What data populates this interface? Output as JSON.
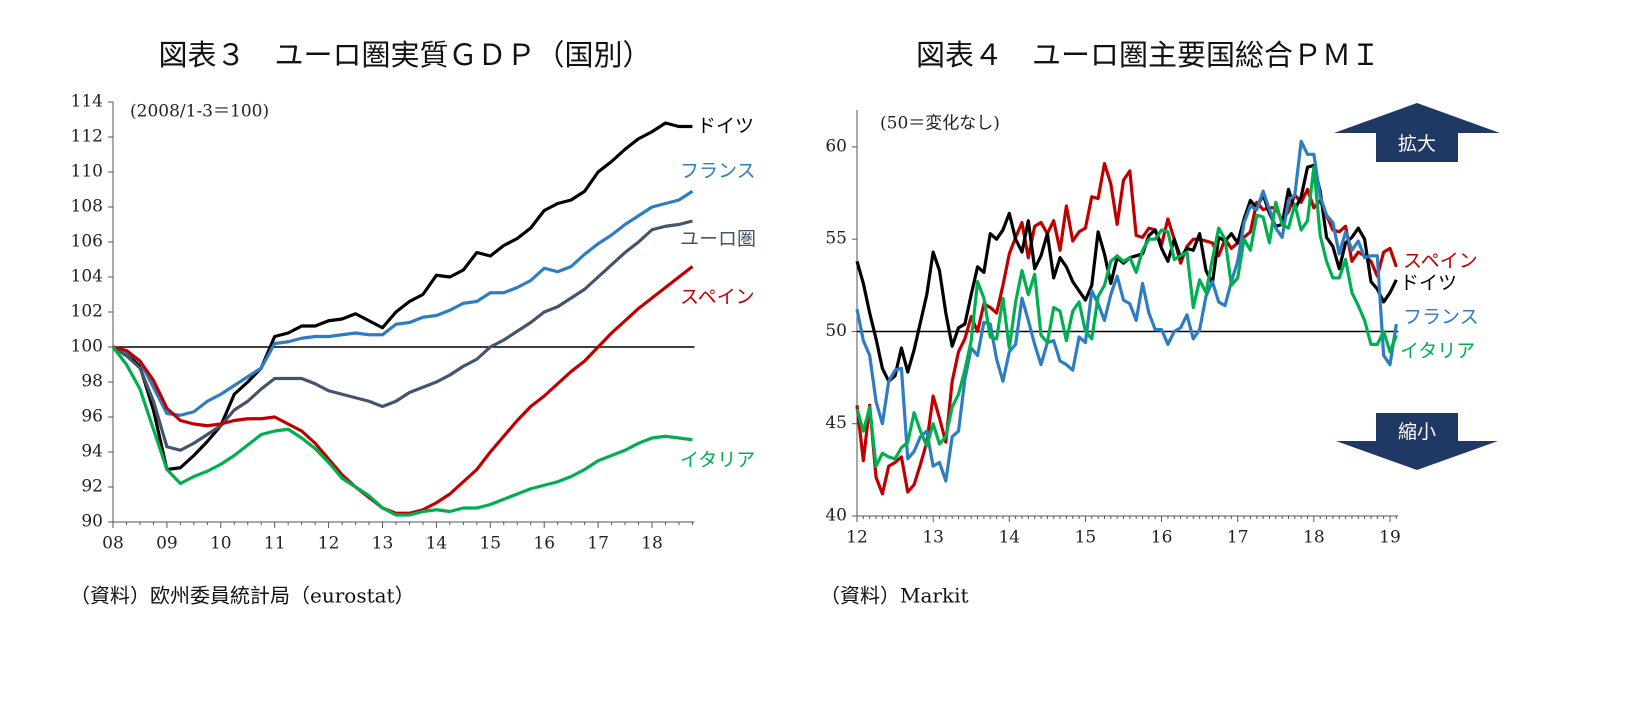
{
  "chart_data": [
    {
      "type": "line",
      "title": "図表３　ユーロ圏実質ＧＤＰ（国別）",
      "note": "(2008/1-3＝100)",
      "source": "（資料）欧州委員統計局（eurostat）",
      "categories": [
        "08",
        null,
        null,
        null,
        "09",
        null,
        null,
        null,
        "10",
        null,
        null,
        null,
        "11",
        null,
        null,
        null,
        "12",
        null,
        null,
        null,
        "13",
        null,
        null,
        null,
        "14",
        null,
        null,
        null,
        "15",
        null,
        null,
        null,
        "16",
        null,
        null,
        null,
        "17",
        null,
        null,
        null,
        "18",
        null,
        null,
        null
      ],
      "ylim": [
        90,
        114
      ],
      "yticks": [
        90,
        92,
        94,
        96,
        98,
        100,
        102,
        104,
        106,
        108,
        110,
        112,
        114
      ],
      "hline": 100,
      "series": [
        {
          "name": "ドイツ",
          "color": "#000000",
          "values": [
            100,
            99.6,
            98.9,
            96.4,
            93.0,
            93.1,
            93.8,
            94.6,
            95.5,
            97.3,
            98.0,
            98.8,
            100.6,
            100.8,
            101.2,
            101.2,
            101.5,
            101.6,
            101.9,
            101.5,
            101.1,
            102.0,
            102.6,
            103.0,
            104.1,
            104.0,
            104.4,
            105.4,
            105.2,
            105.8,
            106.2,
            106.8,
            107.8,
            108.2,
            108.4,
            108.9,
            110.0,
            110.6,
            111.3,
            111.9,
            112.3,
            112.8,
            112.6,
            112.6
          ]
        },
        {
          "name": "フランス",
          "color": "#2e7dc2",
          "values": [
            100,
            99.7,
            99.2,
            97.7,
            96.2,
            96.1,
            96.3,
            96.9,
            97.3,
            97.8,
            98.3,
            98.8,
            100.2,
            100.3,
            100.5,
            100.6,
            100.6,
            100.7,
            100.8,
            100.7,
            100.7,
            101.3,
            101.4,
            101.7,
            101.8,
            102.1,
            102.5,
            102.6,
            103.1,
            103.1,
            103.4,
            103.8,
            104.5,
            104.3,
            104.6,
            105.3,
            105.9,
            106.4,
            107.0,
            107.5,
            108.0,
            108.2,
            108.4,
            108.9
          ]
        },
        {
          "name": "ユーロ圏",
          "color": "#44546a",
          "values": [
            100,
            99.5,
            98.8,
            96.9,
            94.3,
            94.1,
            94.5,
            95.0,
            95.5,
            96.4,
            96.9,
            97.6,
            98.2,
            98.2,
            98.2,
            97.9,
            97.5,
            97.3,
            97.1,
            96.9,
            96.6,
            96.9,
            97.4,
            97.7,
            98.0,
            98.4,
            98.9,
            99.3,
            100.0,
            100.4,
            100.9,
            101.4,
            102.0,
            102.3,
            102.8,
            103.3,
            104.0,
            104.7,
            105.4,
            106.0,
            106.7,
            106.9,
            107.0,
            107.2
          ]
        },
        {
          "name": "スペイン",
          "color": "#c00000",
          "values": [
            100,
            99.8,
            99.2,
            98.1,
            96.5,
            95.8,
            95.6,
            95.5,
            95.6,
            95.8,
            95.9,
            95.9,
            96.0,
            95.6,
            95.2,
            94.5,
            93.6,
            92.7,
            92.0,
            91.4,
            90.8,
            90.5,
            90.5,
            90.7,
            91.1,
            91.6,
            92.3,
            93.0,
            94.0,
            94.9,
            95.8,
            96.6,
            97.2,
            97.9,
            98.6,
            99.2,
            100.0,
            100.8,
            101.5,
            102.2,
            102.8,
            103.4,
            104.0,
            104.6
          ]
        },
        {
          "name": "イタリア",
          "color": "#00b050",
          "values": [
            100,
            99.0,
            97.6,
            95.3,
            93.0,
            92.2,
            92.6,
            92.9,
            93.3,
            93.8,
            94.4,
            95.0,
            95.2,
            95.3,
            94.8,
            94.2,
            93.4,
            92.5,
            92.0,
            91.5,
            90.8,
            90.4,
            90.4,
            90.6,
            90.7,
            90.6,
            90.8,
            90.8,
            91.0,
            91.3,
            91.6,
            91.9,
            92.1,
            92.3,
            92.6,
            93.0,
            93.5,
            93.8,
            94.1,
            94.5,
            94.8,
            94.9,
            94.8,
            94.7
          ]
        }
      ]
    },
    {
      "type": "line",
      "title": "図表４　ユーロ圏主要国総合ＰＭＩ",
      "note": "(50＝変化なし)",
      "source": "（資料）Markit",
      "annotations": [
        "拡大",
        "縮小"
      ],
      "categories": [
        "12",
        null,
        null,
        null,
        null,
        null,
        null,
        null,
        null,
        null,
        null,
        null,
        "13",
        null,
        null,
        null,
        null,
        null,
        null,
        null,
        null,
        null,
        null,
        null,
        "14",
        null,
        null,
        null,
        null,
        null,
        null,
        null,
        null,
        null,
        null,
        null,
        "15",
        null,
        null,
        null,
        null,
        null,
        null,
        null,
        null,
        null,
        null,
        null,
        "16",
        null,
        null,
        null,
        null,
        null,
        null,
        null,
        null,
        null,
        null,
        null,
        "17",
        null,
        null,
        null,
        null,
        null,
        null,
        null,
        null,
        null,
        null,
        null,
        "18",
        null,
        null,
        null,
        null,
        null,
        null,
        null,
        null,
        null,
        null,
        null,
        "19",
        null
      ],
      "ylim": [
        40,
        62
      ],
      "yticks": [
        40,
        45,
        50,
        55,
        60
      ],
      "hline": 50,
      "series": [
        {
          "name": "スペイン",
          "color": "#c00000",
          "values": [
            46.0,
            43.0,
            46.0,
            42.1,
            41.2,
            42.7,
            42.9,
            43.2,
            41.3,
            41.7,
            42.8,
            44.0,
            46.5,
            45.3,
            44.0,
            47.3,
            48.9,
            49.6,
            50.8,
            50.0,
            51.5,
            51.3,
            51.0,
            52.5,
            54.2,
            55.1,
            55.9,
            54.0,
            55.7,
            55.9,
            55.3,
            56.0,
            54.4,
            56.8,
            54.9,
            55.4,
            55.6,
            57.3,
            57.2,
            59.1,
            58.0,
            55.8,
            58.2,
            58.7,
            55.2,
            55.1,
            55.6,
            55.5,
            54.7,
            56.1,
            55.0,
            53.7,
            54.6,
            55.0,
            55.0,
            54.9,
            54.8,
            54.1,
            55.0,
            54.5,
            54.8,
            55.1,
            55.4,
            57.0,
            56.6,
            56.7,
            56.7,
            56.0,
            56.5,
            57.4,
            57.0,
            57.7,
            56.7,
            57.1,
            56.3,
            55.5,
            55.4,
            55.7,
            53.8,
            54.3,
            54.1,
            53.8,
            53.0,
            54.3,
            54.5,
            53.5
          ]
        },
        {
          "name": "ドイツ",
          "color": "#000000",
          "values": [
            53.8,
            52.6,
            51.0,
            49.6,
            48.0,
            47.3,
            47.6,
            49.1,
            47.8,
            49.0,
            50.5,
            52.0,
            54.3,
            53.3,
            51.0,
            49.2,
            50.2,
            50.4,
            52.0,
            53.5,
            53.2,
            55.3,
            55.0,
            55.5,
            56.4,
            55.0,
            54.3,
            56.0,
            53.4,
            54.1,
            55.3,
            52.9,
            54.0,
            53.5,
            52.7,
            52.2,
            51.7,
            52.5,
            55.4,
            54.2,
            52.6,
            54.0,
            53.7,
            54.0,
            54.1,
            54.2,
            55.2,
            55.5,
            54.5,
            53.8,
            55.0,
            54.0,
            54.5,
            54.4,
            55.3,
            53.3,
            52.6,
            55.1,
            54.9,
            55.3,
            54.8,
            56.1,
            57.1,
            56.7,
            57.4,
            56.4,
            55.7,
            55.8,
            57.7,
            56.6,
            57.3,
            58.9,
            59.0,
            57.6,
            55.1,
            54.6,
            53.4,
            54.8,
            55.1,
            55.6,
            55.0,
            52.7,
            52.3,
            51.6,
            52.1,
            52.8
          ]
        },
        {
          "name": "フランス",
          "color": "#2e7dc2",
          "values": [
            51.2,
            49.5,
            48.7,
            46.2,
            45.0,
            47.3,
            47.9,
            48.0,
            43.1,
            43.5,
            44.3,
            44.6,
            42.7,
            42.9,
            41.9,
            44.3,
            44.6,
            47.4,
            49.1,
            48.7,
            50.5,
            50.4,
            48.5,
            47.3,
            48.9,
            49.3,
            51.8,
            50.6,
            49.3,
            48.2,
            49.4,
            49.5,
            48.4,
            48.2,
            47.9,
            49.7,
            49.4,
            52.2,
            51.5,
            50.6,
            52.0,
            53.0,
            51.7,
            51.5,
            50.6,
            52.6,
            51.0,
            50.1,
            50.1,
            49.3,
            50.0,
            50.2,
            50.9,
            49.6,
            50.1,
            51.9,
            52.7,
            51.6,
            51.4,
            52.7,
            53.8,
            55.9,
            56.8,
            56.6,
            57.6,
            56.6,
            55.6,
            55.1,
            57.1,
            57.4,
            60.3,
            59.6,
            59.6,
            57.3,
            56.3,
            55.9,
            54.2,
            55.4,
            54.4,
            54.9,
            54.0,
            54.1,
            54.1,
            48.7,
            48.2,
            50.4
          ]
        },
        {
          "name": "イタリア",
          "color": "#00b050",
          "values": [
            45.8,
            44.6,
            45.9,
            42.7,
            43.4,
            43.2,
            43.1,
            43.7,
            44.0,
            45.6,
            44.6,
            43.8,
            45.0,
            43.9,
            44.3,
            45.9,
            46.6,
            47.9,
            49.5,
            52.7,
            51.8,
            49.7,
            49.6,
            51.8,
            49.1,
            51.6,
            53.3,
            52.0,
            53.1,
            49.8,
            49.4,
            51.3,
            51.1,
            49.5,
            51.1,
            51.6,
            50.0,
            49.6,
            51.9,
            52.5,
            53.8,
            54.1,
            53.8,
            54.0,
            53.2,
            54.4,
            55.0,
            55.0,
            55.5,
            55.4,
            53.9,
            54.1,
            54.3,
            51.3,
            52.8,
            52.1,
            53.9,
            55.6,
            55.0,
            52.5,
            52.9,
            55.0,
            54.4,
            56.3,
            56.2,
            54.8,
            57.0,
            55.8,
            55.6,
            56.9,
            55.5,
            56.0,
            58.9,
            55.2,
            53.8,
            52.9,
            52.9,
            53.9,
            52.1,
            51.4,
            50.6,
            49.3,
            49.3,
            50.0,
            48.9,
            49.8
          ]
        }
      ]
    }
  ]
}
